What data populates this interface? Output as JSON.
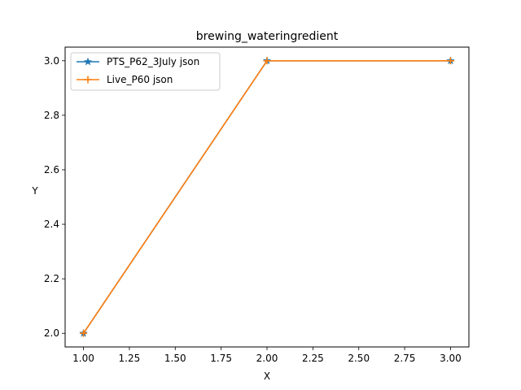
{
  "chart_data": {
    "type": "line",
    "title": "brewing_wateringredient",
    "xlabel": "X",
    "ylabel": "Y",
    "xlim": [
      0.9,
      3.1
    ],
    "ylim": [
      1.95,
      3.05
    ],
    "xticks": [
      "1.00",
      "1.25",
      "1.50",
      "1.75",
      "2.00",
      "2.25",
      "2.50",
      "2.75",
      "3.00"
    ],
    "xtick_values": [
      1.0,
      1.25,
      1.5,
      1.75,
      2.0,
      2.25,
      2.5,
      2.75,
      3.0
    ],
    "yticks": [
      "2.0",
      "2.2",
      "2.4",
      "2.6",
      "2.8",
      "3.0"
    ],
    "ytick_values": [
      2.0,
      2.2,
      2.4,
      2.6,
      2.8,
      3.0
    ],
    "grid": false,
    "legend_position": "top-left",
    "series": [
      {
        "name": "PTS_P62_3July json",
        "x": [
          1,
          2,
          3
        ],
        "y": [
          2,
          3,
          3
        ],
        "color": "#1f77b4",
        "marker": "star"
      },
      {
        "name": "Live_P60 json",
        "x": [
          1,
          2,
          3
        ],
        "y": [
          2,
          3,
          3
        ],
        "color": "#ff7f0e",
        "marker": "plus"
      }
    ]
  }
}
